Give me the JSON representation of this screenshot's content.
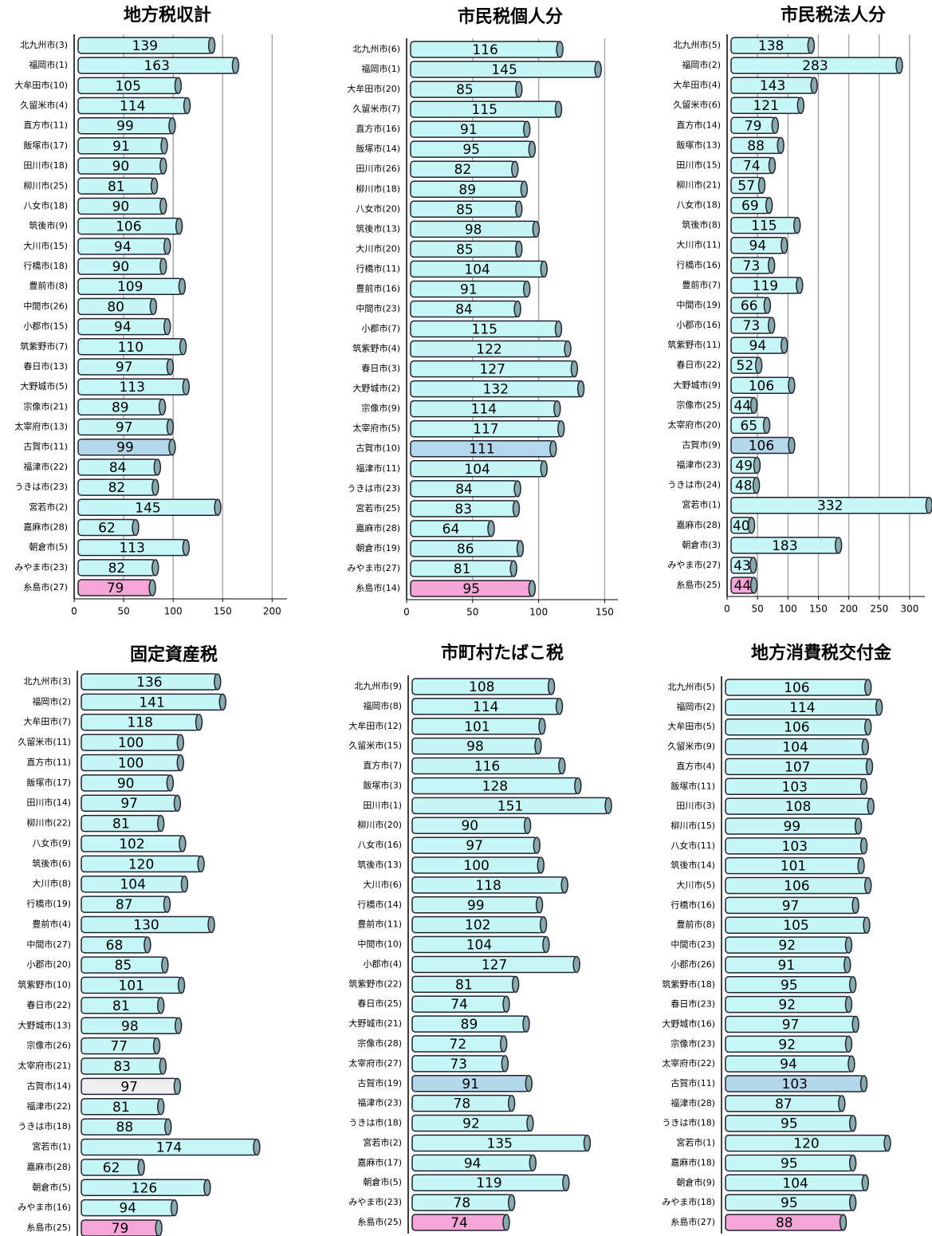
{
  "chart_data": [
    {
      "type": "bar",
      "orientation": "horizontal",
      "title": "地方税収計",
      "categories": [
        "北九州市(3)",
        "福岡市(1)",
        "大牟田市(10)",
        "久留米市(4)",
        "直方市(11)",
        "飯塚市(17)",
        "田川市(18)",
        "柳川市(25)",
        "八女市(18)",
        "筑後市(9)",
        "大川市(15)",
        "行橋市(18)",
        "豊前市(8)",
        "中間市(26)",
        "小郡市(15)",
        "筑紫野市(7)",
        "春日市(13)",
        "大野城市(5)",
        "宗像市(21)",
        "太宰府市(13)",
        "古賀市(11)",
        "福津市(22)",
        "うきは市(23)",
        "宮若市(2)",
        "嘉麻市(28)",
        "朝倉市(5)",
        "みやま市(23)",
        "糸島市(27)"
      ],
      "values": [
        139,
        163,
        105,
        114,
        99,
        91,
        90,
        81,
        90,
        106,
        94,
        90,
        109,
        80,
        94,
        110,
        97,
        113,
        89,
        97,
        99,
        84,
        82,
        145,
        62,
        113,
        82,
        79
      ],
      "colors": [
        "#c6f6f6",
        "#c6f6f6",
        "#c6f6f6",
        "#c6f6f6",
        "#c6f6f6",
        "#c6f6f6",
        "#c6f6f6",
        "#c6f6f6",
        "#c6f6f6",
        "#c6f6f6",
        "#c6f6f6",
        "#c6f6f6",
        "#c6f6f6",
        "#c6f6f6",
        "#c6f6f6",
        "#c6f6f6",
        "#c6f6f6",
        "#c6f6f6",
        "#c6f6f6",
        "#c6f6f6",
        "#b4d8ea",
        "#c6f6f6",
        "#c6f6f6",
        "#c6f6f6",
        "#c6f6f6",
        "#c6f6f6",
        "#c6f6f6",
        "#f4a6d6"
      ],
      "xlim": [
        0,
        215
      ],
      "xticks": [
        0,
        50,
        100,
        150,
        200
      ]
    },
    {
      "type": "bar",
      "orientation": "horizontal",
      "title": "市民税個人分",
      "categories": [
        "北九州市(6)",
        "福岡市(1)",
        "大牟田市(20)",
        "久留米市(7)",
        "直方市(16)",
        "飯塚市(14)",
        "田川市(26)",
        "柳川市(18)",
        "八女市(20)",
        "筑後市(13)",
        "大川市(20)",
        "行橋市(11)",
        "豊前市(16)",
        "中間市(23)",
        "小郡市(7)",
        "筑紫野市(4)",
        "春日市(3)",
        "大野城市(2)",
        "宗像市(9)",
        "太宰府市(5)",
        "古賀市(10)",
        "福津市(11)",
        "うきは市(23)",
        "宮若市(25)",
        "嘉麻市(28)",
        "朝倉市(19)",
        "みやま市(27)",
        "糸島市(14)"
      ],
      "values": [
        116,
        145,
        85,
        115,
        91,
        95,
        82,
        89,
        85,
        98,
        85,
        104,
        91,
        84,
        115,
        122,
        127,
        132,
        114,
        117,
        111,
        104,
        84,
        83,
        64,
        86,
        81,
        95
      ],
      "colors": [
        "#c6f6f6",
        "#c6f6f6",
        "#c6f6f6",
        "#c6f6f6",
        "#c6f6f6",
        "#c6f6f6",
        "#c6f6f6",
        "#c6f6f6",
        "#c6f6f6",
        "#c6f6f6",
        "#c6f6f6",
        "#c6f6f6",
        "#c6f6f6",
        "#c6f6f6",
        "#c6f6f6",
        "#c6f6f6",
        "#c6f6f6",
        "#c6f6f6",
        "#c6f6f6",
        "#c6f6f6",
        "#b4d8ea",
        "#c6f6f6",
        "#c6f6f6",
        "#c6f6f6",
        "#c6f6f6",
        "#c6f6f6",
        "#c6f6f6",
        "#f4a6d6"
      ],
      "xlim": [
        0,
        160
      ],
      "xticks": [
        0,
        50,
        100,
        150
      ]
    },
    {
      "type": "bar",
      "orientation": "horizontal",
      "title": "市民税法人分",
      "categories": [
        "北九州市(5)",
        "福岡市(2)",
        "大牟田市(4)",
        "久留米市(6)",
        "直方市(14)",
        "飯塚市(13)",
        "田川市(15)",
        "柳川市(21)",
        "八女市(18)",
        "筑後市(8)",
        "大川市(11)",
        "行橋市(16)",
        "豊前市(7)",
        "中間市(19)",
        "小郡市(16)",
        "筑紫野市(11)",
        "春日市(22)",
        "大野城市(9)",
        "宗像市(25)",
        "太宰府市(20)",
        "古賀市(9)",
        "福津市(23)",
        "うきは市(24)",
        "宮若市(1)",
        "嘉麻市(28)",
        "朝倉市(3)",
        "みやま市(27)",
        "糸島市(25)"
      ],
      "values": [
        138,
        283,
        143,
        121,
        79,
        88,
        74,
        57,
        69,
        115,
        94,
        73,
        119,
        66,
        73,
        94,
        52,
        106,
        44,
        65,
        106,
        49,
        48,
        332,
        40,
        183,
        43,
        44
      ],
      "colors": [
        "#c6f6f6",
        "#c6f6f6",
        "#c6f6f6",
        "#c6f6f6",
        "#c6f6f6",
        "#c6f6f6",
        "#c6f6f6",
        "#c6f6f6",
        "#c6f6f6",
        "#c6f6f6",
        "#c6f6f6",
        "#c6f6f6",
        "#c6f6f6",
        "#c6f6f6",
        "#c6f6f6",
        "#c6f6f6",
        "#c6f6f6",
        "#c6f6f6",
        "#c6f6f6",
        "#c6f6f6",
        "#b4d8ea",
        "#c6f6f6",
        "#c6f6f6",
        "#c6f6f6",
        "#c6f6f6",
        "#c6f6f6",
        "#c6f6f6",
        "#f4a6d6"
      ],
      "xlim": [
        0,
        325
      ],
      "xticks": [
        0,
        50,
        100,
        150,
        200,
        250,
        300
      ]
    },
    {
      "type": "bar",
      "orientation": "horizontal",
      "title": "固定資産税",
      "categories": [
        "北九州市(3)",
        "福岡市(2)",
        "大牟田市(7)",
        "久留米市(11)",
        "直方市(11)",
        "飯塚市(17)",
        "田川市(14)",
        "柳川市(22)",
        "八女市(9)",
        "筑後市(6)",
        "大川市(8)",
        "行橋市(19)",
        "豊前市(4)",
        "中間市(27)",
        "小郡市(20)",
        "筑紫野市(10)",
        "春日市(22)",
        "大野城市(13)",
        "宗像市(26)",
        "太宰府市(21)",
        "古賀市(14)",
        "福津市(22)",
        "うきは市(18)",
        "宮若市(1)",
        "嘉麻市(28)",
        "朝倉市(5)",
        "みやま市(16)",
        "糸島市(25)"
      ],
      "values": [
        136,
        141,
        118,
        100,
        100,
        90,
        97,
        81,
        102,
        120,
        104,
        87,
        130,
        68,
        85,
        101,
        81,
        98,
        77,
        83,
        97,
        81,
        88,
        174,
        62,
        126,
        94,
        79
      ],
      "colors": [
        "#c6f6f6",
        "#c6f6f6",
        "#c6f6f6",
        "#c6f6f6",
        "#c6f6f6",
        "#c6f6f6",
        "#c6f6f6",
        "#c6f6f6",
        "#c6f6f6",
        "#c6f6f6",
        "#c6f6f6",
        "#c6f6f6",
        "#c6f6f6",
        "#c6f6f6",
        "#c6f6f6",
        "#c6f6f6",
        "#c6f6f6",
        "#c6f6f6",
        "#c6f6f6",
        "#c6f6f6",
        "#eeeeee",
        "#c6f6f6",
        "#c6f6f6",
        "#c6f6f6",
        "#c6f6f6",
        "#c6f6f6",
        "#c6f6f6",
        "#f4a6d6"
      ],
      "xlim": [
        0,
        205
      ]
    },
    {
      "type": "bar",
      "orientation": "horizontal",
      "title": "市町村たばこ税",
      "categories": [
        "北九州市(9)",
        "福岡市(8)",
        "大牟田市(12)",
        "久留米市(15)",
        "直方市(7)",
        "飯塚市(3)",
        "田川市(1)",
        "柳川市(20)",
        "八女市(16)",
        "筑後市(13)",
        "大川市(6)",
        "行橋市(14)",
        "豊前市(11)",
        "中間市(10)",
        "小郡市(4)",
        "筑紫野市(22)",
        "春日市(25)",
        "大野城市(21)",
        "宗像市(28)",
        "太宰府市(27)",
        "古賀市(19)",
        "福津市(23)",
        "うきは市(18)",
        "宮若市(2)",
        "嘉麻市(17)",
        "朝倉市(5)",
        "みやま市(23)",
        "糸島市(25)"
      ],
      "values": [
        108,
        114,
        101,
        98,
        116,
        128,
        151,
        90,
        97,
        100,
        118,
        99,
        102,
        104,
        127,
        81,
        74,
        89,
        72,
        73,
        91,
        78,
        92,
        135,
        94,
        119,
        78,
        74
      ],
      "colors": [
        "#c6f6f6",
        "#c6f6f6",
        "#c6f6f6",
        "#c6f6f6",
        "#c6f6f6",
        "#c6f6f6",
        "#c6f6f6",
        "#c6f6f6",
        "#c6f6f6",
        "#c6f6f6",
        "#c6f6f6",
        "#c6f6f6",
        "#c6f6f6",
        "#c6f6f6",
        "#c6f6f6",
        "#c6f6f6",
        "#c6f6f6",
        "#c6f6f6",
        "#c6f6f6",
        "#c6f6f6",
        "#b4d8ea",
        "#c6f6f6",
        "#c6f6f6",
        "#c6f6f6",
        "#c6f6f6",
        "#c6f6f6",
        "#c6f6f6",
        "#f4a6d6"
      ],
      "xlim": [
        0,
        160
      ]
    },
    {
      "type": "bar",
      "orientation": "horizontal",
      "title": "地方消費税交付金",
      "categories": [
        "北九州市(5)",
        "福岡市(2)",
        "大牟田市(5)",
        "久留米市(9)",
        "直方市(4)",
        "飯塚市(11)",
        "田川市(3)",
        "柳川市(15)",
        "八女市(11)",
        "筑後市(14)",
        "大川市(5)",
        "行橋市(16)",
        "豊前市(8)",
        "中間市(23)",
        "小郡市(26)",
        "筑紫野市(18)",
        "春日市(23)",
        "大野城市(16)",
        "宗像市(23)",
        "太宰府市(22)",
        "古賀市(11)",
        "福津市(28)",
        "うきは市(18)",
        "宮若市(1)",
        "嘉麻市(18)",
        "朝倉市(9)",
        "みやま市(18)",
        "糸島市(27)"
      ],
      "values": [
        106,
        114,
        106,
        104,
        107,
        103,
        108,
        99,
        103,
        101,
        106,
        97,
        105,
        92,
        91,
        95,
        92,
        97,
        92,
        94,
        103,
        87,
        95,
        120,
        95,
        104,
        95,
        88
      ],
      "colors": [
        "#c6f6f6",
        "#c6f6f6",
        "#c6f6f6",
        "#c6f6f6",
        "#c6f6f6",
        "#c6f6f6",
        "#c6f6f6",
        "#c6f6f6",
        "#c6f6f6",
        "#c6f6f6",
        "#c6f6f6",
        "#c6f6f6",
        "#c6f6f6",
        "#c6f6f6",
        "#c6f6f6",
        "#c6f6f6",
        "#c6f6f6",
        "#c6f6f6",
        "#c6f6f6",
        "#c6f6f6",
        "#b4d8ea",
        "#c6f6f6",
        "#c6f6f6",
        "#c6f6f6",
        "#c6f6f6",
        "#c6f6f6",
        "#c6f6f6",
        "#f4a6d6"
      ],
      "xlim": [
        0,
        150
      ]
    }
  ]
}
